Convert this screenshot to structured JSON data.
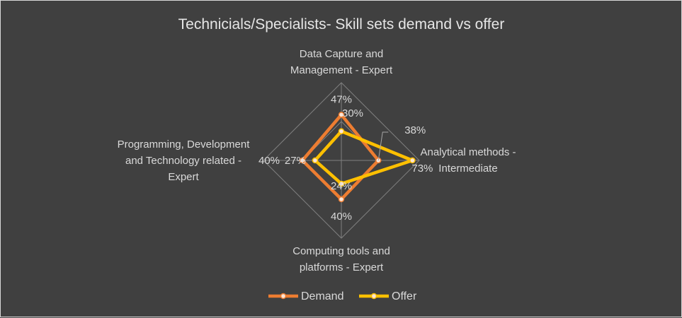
{
  "chart_data": {
    "type": "radar",
    "title": "Technicials/Specialists- Skill sets demand vs offer",
    "categories": [
      "Data Capture and Management - Expert",
      "Analytical methods - Intermediate",
      "Computing tools and platforms - Expert",
      "Programming, Development and Technology related - Expert"
    ],
    "category_lines": [
      [
        "Data Capture and",
        "Management - Expert"
      ],
      [
        "Analytical methods -",
        "Intermediate"
      ],
      [
        "Computing tools and",
        "platforms - Expert"
      ],
      [
        "Programming, Development",
        "and Technology related -",
        "Expert"
      ]
    ],
    "rmax": 80,
    "grid_levels": [
      40,
      80
    ],
    "series": [
      {
        "name": "Demand",
        "color": "#ed7d31",
        "values": [
          47,
          38,
          40,
          40
        ],
        "labels": [
          "47%",
          "38%",
          "40%",
          "40%"
        ]
      },
      {
        "name": "Offer",
        "color": "#ffc000",
        "values": [
          30,
          73,
          24,
          27
        ],
        "labels": [
          "30%",
          "73%",
          "24%",
          "27%"
        ]
      }
    ],
    "legend": "bottom"
  }
}
